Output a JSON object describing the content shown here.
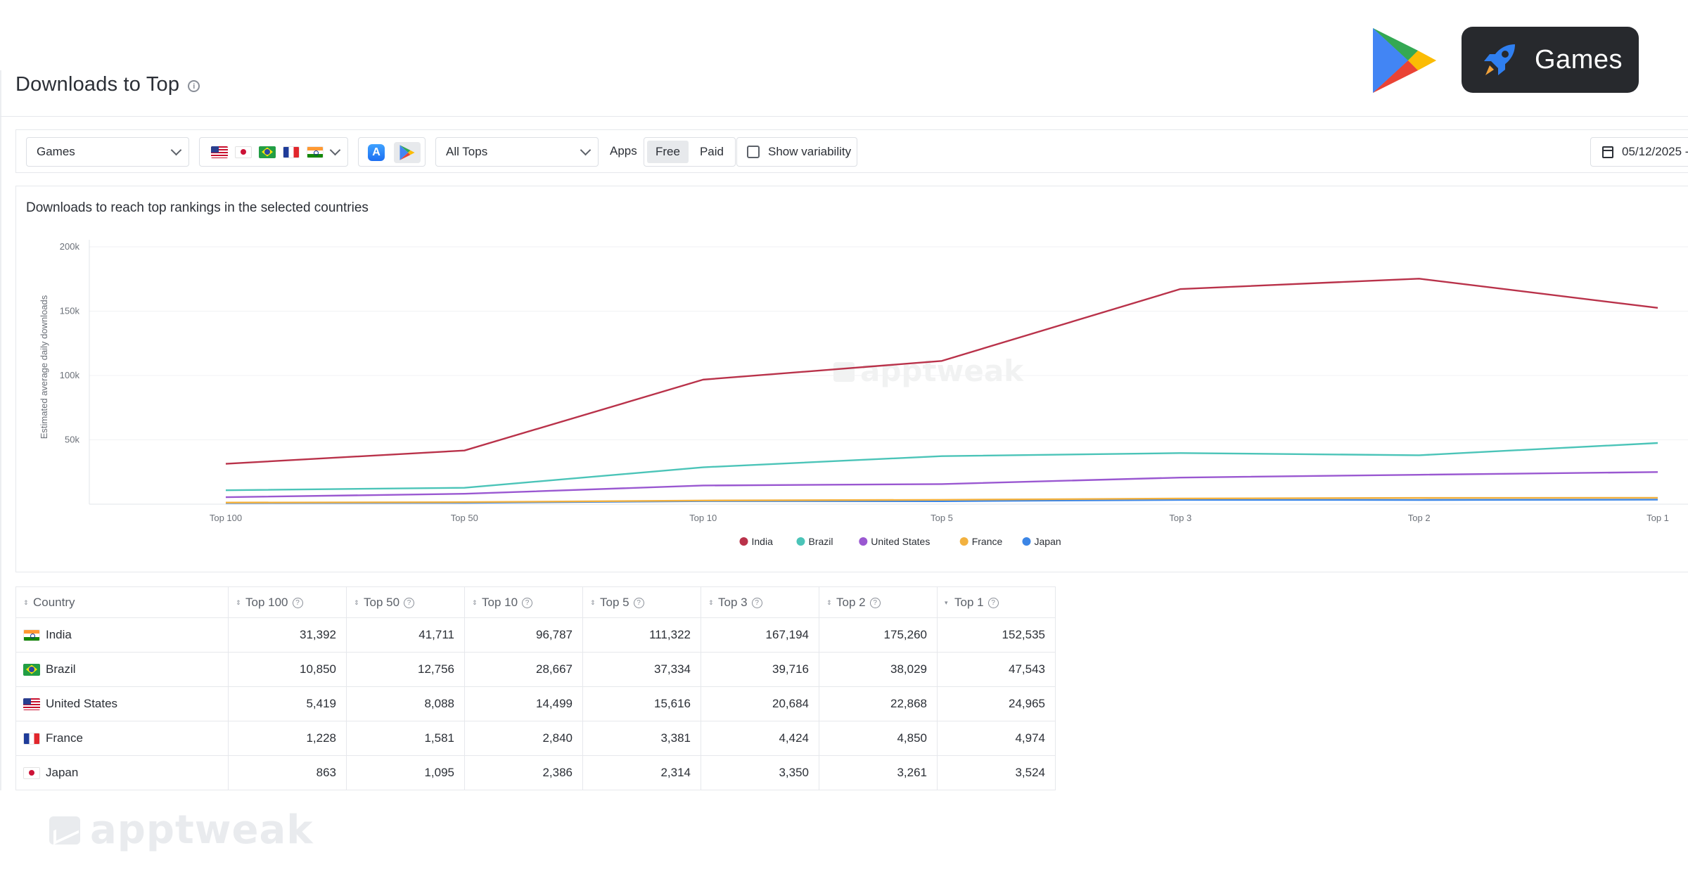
{
  "header": {
    "title": "Downloads to Top",
    "info_icon": "info-icon"
  },
  "badge": {
    "store_icon": "google-play-icon",
    "category_icon": "rocket-icon",
    "label": "Games"
  },
  "toolbar": {
    "category_select": "Games",
    "countries": [
      "us",
      "jp",
      "br",
      "fr",
      "in"
    ],
    "stores": [
      "app-store-icon",
      "google-play-icon"
    ],
    "tops_select": "All Tops",
    "apps_label": "Apps",
    "free_label": "Free",
    "paid_label": "Paid",
    "variability_label": "Show variability",
    "date_value": "05/12/2025 -"
  },
  "chart_data": {
    "type": "line",
    "title": "Downloads to reach top rankings in the selected countries",
    "ylabel": "Estimated average daily downloads",
    "xlabel": "",
    "categories": [
      "Top 100",
      "Top 50",
      "Top 10",
      "Top 5",
      "Top 3",
      "Top 2",
      "Top 1"
    ],
    "ylim": [
      0,
      200000
    ],
    "yticks": [
      50000,
      100000,
      150000,
      200000
    ],
    "ytick_labels": [
      "50k",
      "100k",
      "150k",
      "200k"
    ],
    "grid": true,
    "legend_position": "bottom",
    "watermark": "apptweak",
    "series": [
      {
        "name": "India",
        "color": "#b9324a",
        "values": [
          31392,
          41711,
          96787,
          111322,
          167194,
          175260,
          152535
        ]
      },
      {
        "name": "Brazil",
        "color": "#4bc4b8",
        "values": [
          10850,
          12756,
          28667,
          37334,
          39716,
          38029,
          47543
        ]
      },
      {
        "name": "United States",
        "color": "#9a58d1",
        "values": [
          5419,
          8088,
          14499,
          15616,
          20684,
          22868,
          24965
        ]
      },
      {
        "name": "France",
        "color": "#f2b13f",
        "values": [
          1228,
          1581,
          2840,
          3381,
          4424,
          4850,
          4974
        ]
      },
      {
        "name": "Japan",
        "color": "#3c86e6",
        "values": [
          863,
          1095,
          2386,
          2314,
          3350,
          3261,
          3524
        ]
      }
    ]
  },
  "table": {
    "columns": [
      "Country",
      "Top 100",
      "Top 50",
      "Top 10",
      "Top 5",
      "Top 3",
      "Top 2",
      "Top 1"
    ],
    "rows": [
      {
        "country": "India",
        "flag": "in",
        "values": [
          "31,392",
          "41,711",
          "96,787",
          "111,322",
          "167,194",
          "175,260",
          "152,535"
        ]
      },
      {
        "country": "Brazil",
        "flag": "br",
        "values": [
          "10,850",
          "12,756",
          "28,667",
          "37,334",
          "39,716",
          "38,029",
          "47,543"
        ]
      },
      {
        "country": "United States",
        "flag": "us",
        "values": [
          "5,419",
          "8,088",
          "14,499",
          "15,616",
          "20,684",
          "22,868",
          "24,965"
        ]
      },
      {
        "country": "France",
        "flag": "fr",
        "values": [
          "1,228",
          "1,581",
          "2,840",
          "3,381",
          "4,424",
          "4,850",
          "4,974"
        ]
      },
      {
        "country": "Japan",
        "flag": "jp",
        "values": [
          "863",
          "1,095",
          "2,386",
          "2,314",
          "3,350",
          "3,261",
          "3,524"
        ]
      }
    ]
  },
  "footer": {
    "logo_text": "apptweak"
  }
}
